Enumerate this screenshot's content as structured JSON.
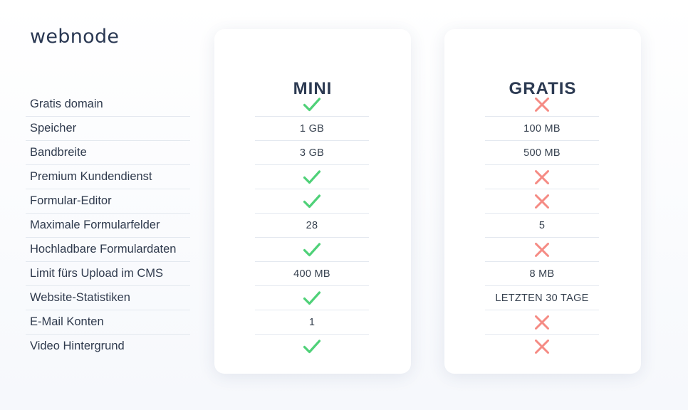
{
  "brand": {
    "logo_text": "webnode"
  },
  "features": [
    "Gratis domain",
    "Speicher",
    "Bandbreite",
    "Premium Kundendienst",
    "Formular-Editor",
    "Maximale Formularfelder",
    "Hochladbare Formulardaten",
    "Limit fürs Upload im CMS",
    "Website-Statistiken",
    "E-Mail Konten",
    "Video Hintergrund"
  ],
  "plans": [
    {
      "key": "mini",
      "title": "MINI",
      "values": [
        {
          "type": "check"
        },
        {
          "type": "text",
          "text": "1 GB"
        },
        {
          "type": "text",
          "text": "3 GB"
        },
        {
          "type": "check"
        },
        {
          "type": "check"
        },
        {
          "type": "text",
          "text": "28"
        },
        {
          "type": "check"
        },
        {
          "type": "text",
          "text": "400 MB"
        },
        {
          "type": "check"
        },
        {
          "type": "text",
          "text": "1"
        },
        {
          "type": "check"
        }
      ]
    },
    {
      "key": "gratis",
      "title": "GRATIS",
      "values": [
        {
          "type": "cross"
        },
        {
          "type": "text",
          "text": "100 MB"
        },
        {
          "type": "text",
          "text": "500 MB"
        },
        {
          "type": "cross"
        },
        {
          "type": "cross"
        },
        {
          "type": "text",
          "text": "5"
        },
        {
          "type": "cross"
        },
        {
          "type": "text",
          "text": "8 MB"
        },
        {
          "type": "text",
          "text": "LETZTEN 30 TAGE"
        },
        {
          "type": "cross"
        },
        {
          "type": "cross"
        }
      ]
    }
  ],
  "colors": {
    "check": "#4fd178",
    "cross": "#f58b84"
  }
}
